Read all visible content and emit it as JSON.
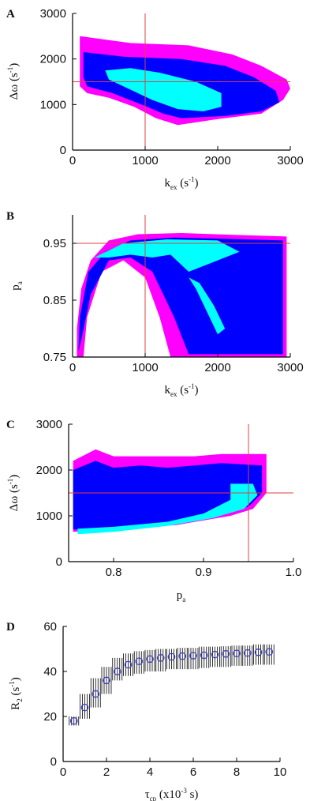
{
  "colors": {
    "outer": "#ff00ff",
    "middle": "#0000ff",
    "inner": "#00ffff",
    "guide": "#e04040",
    "marker": "#4040c0",
    "errorbar": "#000000"
  },
  "chart_data": [
    {
      "panel": "A",
      "type": "heatmap",
      "xlabel": {
        "main": "k",
        "sub": "ex",
        "unit_pre": " (s",
        "sup": "-1",
        "unit_post": ")"
      },
      "ylabel": {
        "main": "Δω",
        "unit_pre": " (s",
        "sup": "-1",
        "unit_post": ")"
      },
      "xlim": [
        0,
        3000
      ],
      "ylim": [
        0,
        3000
      ],
      "xticks": [
        "0",
        "1000",
        "2000",
        "3000"
      ],
      "yticks": [
        "0",
        "1000",
        "2000",
        "3000"
      ],
      "guides": {
        "x": 1000,
        "y": 1500
      },
      "regions": [
        {
          "level": "outer",
          "polygon": [
            [
              100,
              2500
            ],
            [
              800,
              2350
            ],
            [
              1600,
              2300
            ],
            [
              2200,
              2100
            ],
            [
              2600,
              1850
            ],
            [
              2950,
              1550
            ],
            [
              3000,
              1350
            ],
            [
              2900,
              1100
            ],
            [
              2600,
              800
            ],
            [
              2000,
              680
            ],
            [
              1450,
              550
            ],
            [
              1150,
              700
            ],
            [
              850,
              950
            ],
            [
              500,
              1150
            ],
            [
              200,
              1250
            ],
            [
              100,
              1400
            ]
          ]
        },
        {
          "level": "middle",
          "polygon": [
            [
              150,
              2150
            ],
            [
              700,
              2050
            ],
            [
              1500,
              2000
            ],
            [
              2100,
              1850
            ],
            [
              2500,
              1600
            ],
            [
              2800,
              1300
            ],
            [
              2850,
              1050
            ],
            [
              2600,
              850
            ],
            [
              2100,
              750
            ],
            [
              1500,
              700
            ],
            [
              1250,
              800
            ],
            [
              950,
              1000
            ],
            [
              550,
              1250
            ],
            [
              200,
              1400
            ],
            [
              150,
              1600
            ]
          ]
        },
        {
          "level": "inner",
          "polygon": [
            [
              450,
              1750
            ],
            [
              800,
              1800
            ],
            [
              1200,
              1700
            ],
            [
              1700,
              1500
            ],
            [
              2050,
              1250
            ],
            [
              2050,
              950
            ],
            [
              1800,
              850
            ],
            [
              1450,
              900
            ],
            [
              1100,
              1100
            ],
            [
              700,
              1400
            ],
            [
              500,
              1550
            ]
          ]
        }
      ]
    },
    {
      "panel": "B",
      "type": "heatmap",
      "xlabel": {
        "main": "k",
        "sub": "ex",
        "unit_pre": " (s",
        "sup": "-1",
        "unit_post": ")"
      },
      "ylabel": {
        "main": "p",
        "sub": "a"
      },
      "xlim": [
        0,
        3000
      ],
      "ylim": [
        0.75,
        1.0
      ],
      "xticks": [
        "0",
        "1000",
        "2000",
        "3000"
      ],
      "yticks": [
        "0.75",
        "0.85",
        "0.95"
      ],
      "guides": {
        "x": 1000,
        "y": 0.95
      },
      "regions": [
        {
          "level": "outer",
          "polygon": [
            [
              60,
              0.75
            ],
            [
              60,
              0.8
            ],
            [
              120,
              0.87
            ],
            [
              250,
              0.92
            ],
            [
              500,
              0.955
            ],
            [
              900,
              0.966
            ],
            [
              1500,
              0.968
            ],
            [
              2200,
              0.965
            ],
            [
              2950,
              0.962
            ],
            [
              2950,
              0.75
            ],
            [
              1350,
              0.75
            ],
            [
              1200,
              0.82
            ],
            [
              1000,
              0.89
            ],
            [
              700,
              0.92
            ],
            [
              400,
              0.9
            ],
            [
              200,
              0.82
            ],
            [
              150,
              0.75
            ]
          ]
        },
        {
          "level": "middle",
          "polygon": [
            [
              80,
              0.76
            ],
            [
              100,
              0.82
            ],
            [
              220,
              0.9
            ],
            [
              450,
              0.935
            ],
            [
              800,
              0.955
            ],
            [
              1400,
              0.96
            ],
            [
              2100,
              0.958
            ],
            [
              2900,
              0.955
            ],
            [
              2900,
              0.755
            ],
            [
              1600,
              0.755
            ],
            [
              1400,
              0.82
            ],
            [
              1100,
              0.9
            ],
            [
              800,
              0.925
            ],
            [
              500,
              0.92
            ],
            [
              250,
              0.86
            ],
            [
              120,
              0.78
            ]
          ]
        },
        {
          "level": "inner",
          "polygon": [
            [
              300,
              0.925
            ],
            [
              700,
              0.95
            ],
            [
              1300,
              0.957
            ],
            [
              2000,
              0.955
            ],
            [
              2300,
              0.935
            ],
            [
              2000,
              0.92
            ],
            [
              1600,
              0.9
            ],
            [
              1350,
              0.93
            ],
            [
              1100,
              0.925
            ],
            [
              800,
              0.93
            ],
            [
              500,
              0.925
            ]
          ]
        },
        {
          "level": "inner",
          "polygon": [
            [
              1600,
              0.89
            ],
            [
              1750,
              0.88
            ],
            [
              1950,
              0.84
            ],
            [
              2100,
              0.8
            ],
            [
              2000,
              0.79
            ],
            [
              1850,
              0.83
            ],
            [
              1700,
              0.87
            ]
          ]
        }
      ]
    },
    {
      "panel": "C",
      "type": "heatmap",
      "xlabel": {
        "main": "p",
        "sub": "a"
      },
      "ylabel": {
        "main": "Δω",
        "unit_pre": " (s",
        "sup": "-1",
        "unit_post": ")"
      },
      "xlim": [
        0.75,
        1.0
      ],
      "ylim": [
        0,
        3000
      ],
      "xticks": [
        "0.8",
        "0.9",
        "1.0"
      ],
      "yticks": [
        "0",
        "1000",
        "2000",
        "3000"
      ],
      "guides": {
        "x": 0.95,
        "y": 1500
      },
      "regions": [
        {
          "level": "outer",
          "polygon": [
            [
              0.755,
              2200
            ],
            [
              0.78,
              2450
            ],
            [
              0.8,
              2300
            ],
            [
              0.83,
              2300
            ],
            [
              0.86,
              2300
            ],
            [
              0.89,
              2300
            ],
            [
              0.92,
              2350
            ],
            [
              0.97,
              2350
            ],
            [
              0.97,
              1500
            ],
            [
              0.955,
              1150
            ],
            [
              0.93,
              1000
            ],
            [
              0.87,
              800
            ],
            [
              0.8,
              700
            ],
            [
              0.755,
              650
            ],
            [
              0.755,
              1300
            ]
          ]
        },
        {
          "level": "middle",
          "polygon": [
            [
              0.755,
              2000
            ],
            [
              0.78,
              2200
            ],
            [
              0.8,
              2050
            ],
            [
              0.83,
              2100
            ],
            [
              0.86,
              2050
            ],
            [
              0.89,
              2100
            ],
            [
              0.92,
              2150
            ],
            [
              0.965,
              2100
            ],
            [
              0.965,
              1500
            ],
            [
              0.95,
              1200
            ],
            [
              0.92,
              1050
            ],
            [
              0.87,
              850
            ],
            [
              0.8,
              730
            ],
            [
              0.755,
              700
            ]
          ]
        },
        {
          "level": "inner",
          "polygon": [
            [
              0.76,
              600
            ],
            [
              0.8,
              650
            ],
            [
              0.86,
              780
            ],
            [
              0.91,
              950
            ],
            [
              0.945,
              1150
            ],
            [
              0.96,
              1450
            ],
            [
              0.955,
              1700
            ],
            [
              0.93,
              1700
            ],
            [
              0.93,
              1350
            ],
            [
              0.9,
              1050
            ],
            [
              0.86,
              870
            ],
            [
              0.8,
              760
            ],
            [
              0.76,
              720
            ]
          ]
        }
      ]
    },
    {
      "panel": "D",
      "type": "scatter",
      "xlabel": {
        "main": "τ",
        "sub": "cp",
        "unit_pre": " (x10",
        "sup": "-3",
        "unit_post": " s)"
      },
      "ylabel": {
        "main": "R",
        "sub": "2",
        "unit_pre": " (s",
        "sup": "-1",
        "unit_post": ")"
      },
      "xlim": [
        0,
        10
      ],
      "ylim": [
        0,
        60
      ],
      "xticks": [
        "0",
        "2",
        "4",
        "6",
        "8",
        "10"
      ],
      "yticks": [
        "0",
        "20",
        "40",
        "60"
      ],
      "x": [
        0.5,
        1.0,
        1.5,
        2.0,
        2.5,
        3.0,
        3.5,
        4.0,
        4.5,
        5.0,
        5.5,
        6.0,
        6.5,
        7.0,
        7.5,
        8.0,
        8.5,
        9.0,
        9.5
      ],
      "y": [
        18,
        24,
        30,
        36,
        40,
        43,
        44.5,
        45.5,
        46,
        46.5,
        46.8,
        47,
        47.2,
        47.5,
        47.8,
        48,
        48.2,
        48.5,
        48.7
      ],
      "err_low": [
        16,
        19,
        24,
        30,
        36,
        38,
        39,
        40,
        40,
        41,
        41,
        41,
        41.5,
        42,
        42,
        42.5,
        42.5,
        43,
        43
      ],
      "err_high": [
        20,
        30,
        37,
        42,
        46,
        48,
        49,
        49.5,
        50,
        50,
        50.5,
        50.5,
        51,
        51,
        51.2,
        51.5,
        51.5,
        52,
        52
      ]
    }
  ]
}
